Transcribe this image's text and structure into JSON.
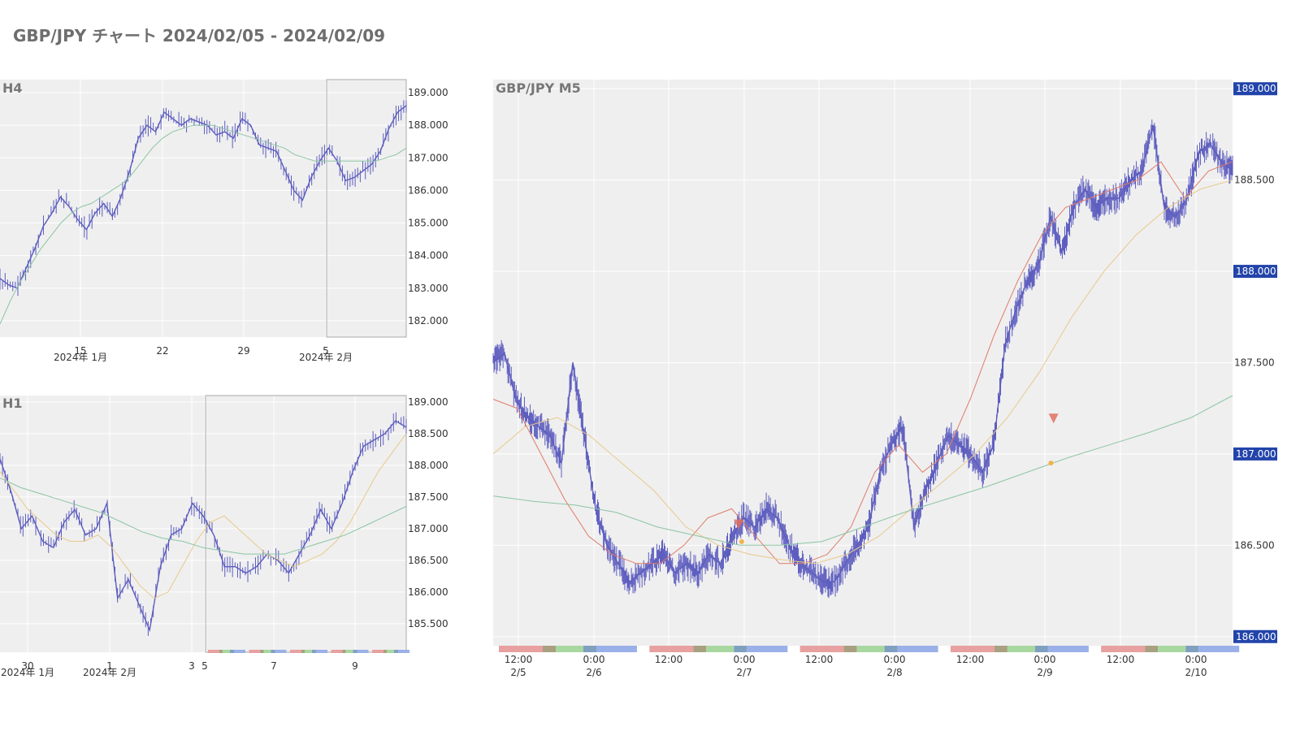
{
  "page_title": "GBP/JPY チャート 2024/02/05 - 2024/02/09",
  "colors": {
    "candle": "#5c5cbf",
    "ma_fast": "#e07a6a",
    "ma_mid": "#e8c98a",
    "ma_slow": "#8cc5a3",
    "price_label_bg": "#2244aa",
    "panel_bg": "#efefef",
    "grid": "#ffffff",
    "sell_marker": "#e07060",
    "buy_marker": "#f2b24a",
    "sessions": [
      "#e8a0a0",
      "#a8a080",
      "#a8d8a0",
      "#80a0c0",
      "#9ab0e8"
    ]
  },
  "chart_data": [
    {
      "id": "h4",
      "type": "line",
      "title": "H4",
      "ylim": [
        181.5,
        189.4
      ],
      "yticks": [
        "182.000",
        "183.000",
        "184.000",
        "185.000",
        "186.000",
        "187.000",
        "188.000",
        "189.000"
      ],
      "ytick_values": [
        182,
        183,
        184,
        185,
        186,
        187,
        188,
        189
      ],
      "xticks": [
        "15",
        "22",
        "29",
        "5"
      ],
      "xticks2": [
        "2024年 1月",
        "2024年 2月"
      ],
      "x_range": [
        "2024-01-08",
        "2024-02-10"
      ],
      "highlight": [
        "2024-02-05",
        "2024-02-10"
      ],
      "series": [
        {
          "values": [
            183.3,
            183.1,
            183.0,
            183.6,
            184.2,
            184.9,
            185.3,
            185.8,
            185.5,
            185.1,
            184.8,
            185.3,
            185.6,
            185.2,
            185.8,
            186.6,
            187.6,
            188.0,
            187.8,
            188.4,
            188.2,
            188.0,
            188.2,
            188.1,
            188.0,
            187.7,
            187.8,
            187.6,
            188.2,
            188.0,
            187.4,
            187.3,
            187.2,
            186.6,
            186.0,
            185.7,
            186.4,
            186.9,
            187.3,
            186.9,
            186.3,
            186.4,
            186.6,
            186.8,
            187.2,
            187.9,
            188.4,
            188.6
          ]
        },
        {
          "name": "",
          "values": [
            181.9,
            182.6,
            183.2,
            183.7,
            184.2,
            184.6,
            185.0,
            185.3,
            185.5,
            185.6,
            185.8,
            186.0,
            186.2,
            186.5,
            186.9,
            187.3,
            187.6,
            187.8,
            187.9,
            188.0,
            188.0,
            188.0,
            187.9,
            187.8,
            187.7,
            187.6,
            187.5,
            187.4,
            187.3,
            187.1,
            187.0,
            186.9,
            186.9,
            186.9,
            186.9,
            186.9,
            186.9,
            186.9,
            187.0,
            187.1,
            187.3
          ]
        }
      ]
    },
    {
      "id": "h1",
      "type": "line",
      "title": "H1",
      "ylim": [
        185.05,
        189.1
      ],
      "yticks": [
        "185.500",
        "186.000",
        "186.500",
        "187.000",
        "187.500",
        "188.000",
        "188.500",
        "189.000"
      ],
      "ytick_values": [
        185.5,
        186.0,
        186.5,
        187.0,
        187.5,
        188.0,
        188.5,
        189.0
      ],
      "xticks": [
        "30",
        "1",
        "3",
        "5",
        "7",
        "9"
      ],
      "xticks2": [
        "2024年 1月",
        "2024年 2月"
      ],
      "x_range": [
        "2024-01-29 16:00",
        "2024-02-10"
      ],
      "highlight": [
        "2024-02-05",
        "2024-02-10"
      ],
      "series": [
        {
          "values": [
            188.1,
            187.6,
            187.0,
            187.2,
            186.8,
            186.7,
            187.1,
            187.3,
            186.9,
            187.0,
            187.4,
            185.9,
            186.2,
            185.8,
            185.4,
            186.4,
            186.9,
            187.0,
            187.4,
            187.2,
            186.9,
            186.4,
            186.4,
            186.3,
            186.4,
            186.6,
            186.5,
            186.3,
            186.6,
            186.9,
            187.3,
            187.0,
            187.4,
            187.9,
            188.3,
            188.4,
            188.5,
            188.7,
            188.6
          ]
        },
        {
          "name": "",
          "values": [
            187.9,
            187.6,
            187.3,
            187.1,
            186.9,
            186.8,
            186.8,
            186.9,
            186.7,
            186.4,
            186.1,
            185.9,
            186.0,
            186.4,
            186.8,
            187.1,
            187.2,
            187.0,
            186.8,
            186.6,
            186.5,
            186.4,
            186.5,
            186.6,
            186.8,
            187.1,
            187.5,
            187.9,
            188.2,
            188.5
          ]
        },
        {
          "name": "",
          "values": [
            187.8,
            187.65,
            187.55,
            187.45,
            187.35,
            187.25,
            187.1,
            186.95,
            186.85,
            186.8,
            186.7,
            186.65,
            186.6,
            186.6,
            186.6,
            186.7,
            186.8,
            186.9,
            187.05,
            187.2,
            187.35
          ]
        }
      ]
    },
    {
      "id": "m5",
      "type": "line",
      "title": "GBP/JPY M5",
      "ylim": [
        185.95,
        189.05
      ],
      "yticks": [
        "186.000",
        "186.500",
        "187.000",
        "187.500",
        "188.000",
        "188.500",
        "189.000"
      ],
      "ytick_values": [
        186.0,
        186.5,
        187.0,
        187.5,
        188.0,
        188.5,
        189.0
      ],
      "highlighted_ticks": [
        "189.000",
        "188.000",
        "187.000",
        "186.000"
      ],
      "xticks": [
        "12:00",
        "0:00",
        "12:00",
        "0:00",
        "12:00",
        "0:00",
        "12:00",
        "0:00",
        "12:00",
        "0:00"
      ],
      "xticks2": [
        "2/5",
        "2/6",
        "",
        "2/7",
        "",
        "2/8",
        "",
        "2/9",
        "",
        "2/10"
      ],
      "x_range": [
        "2024-02-05 08:00",
        "2024-02-10 04:00"
      ],
      "series": [
        {
          "values": [
            187.5,
            187.55,
            187.3,
            187.2,
            187.15,
            187.1,
            186.95,
            187.5,
            187.1,
            186.7,
            186.5,
            186.4,
            186.3,
            186.35,
            186.4,
            186.45,
            186.35,
            186.4,
            186.35,
            186.45,
            186.4,
            186.55,
            186.65,
            186.6,
            186.7,
            186.65,
            186.5,
            186.4,
            186.35,
            186.3,
            186.3,
            186.4,
            186.5,
            186.6,
            186.9,
            187.05,
            187.15,
            186.6,
            186.8,
            186.95,
            187.1,
            187.05,
            187.0,
            186.9,
            187.05,
            187.6,
            187.8,
            187.95,
            188.05,
            188.3,
            188.1,
            188.35,
            188.45,
            188.35,
            188.4,
            188.4,
            188.5,
            188.55,
            188.8,
            188.35,
            188.3,
            188.4,
            188.65,
            188.7,
            188.6,
            188.55
          ]
        },
        {
          "name": "",
          "values": [
            187.3,
            187.25,
            187.0,
            186.75,
            186.55,
            186.45,
            186.4,
            186.4,
            186.5,
            186.65,
            186.7,
            186.55,
            186.4,
            186.4,
            186.45,
            186.6,
            186.9,
            187.05,
            186.9,
            187.0,
            187.3,
            187.65,
            187.95,
            188.2,
            188.35,
            188.4,
            188.45,
            188.5,
            188.6,
            188.4,
            188.55,
            188.6
          ]
        },
        {
          "name": "",
          "values": [
            187.0,
            187.15,
            187.2,
            187.1,
            186.95,
            186.8,
            186.6,
            186.5,
            186.45,
            186.42,
            186.4,
            186.45,
            186.55,
            186.7,
            186.85,
            187.0,
            187.2,
            187.45,
            187.75,
            188.0,
            188.2,
            188.35,
            188.45,
            188.5
          ]
        },
        {
          "name": "",
          "values": [
            186.77,
            186.74,
            186.72,
            186.68,
            186.6,
            186.55,
            186.5,
            186.5,
            186.52,
            186.6,
            186.68,
            186.75,
            186.82,
            186.9,
            186.98,
            187.05,
            187.12,
            187.2,
            187.32
          ]
        }
      ],
      "markers": [
        {
          "type": "sell",
          "x": "2024-02-06 22:30",
          "y": 186.57
        },
        {
          "type": "buy",
          "x": "2024-02-06 23:00",
          "y": 186.52
        },
        {
          "type": "sell",
          "x": "2024-02-08 23:55",
          "y": 187.15
        },
        {
          "type": "buy",
          "x": "2024-02-08 23:30",
          "y": 186.95
        }
      ]
    }
  ]
}
